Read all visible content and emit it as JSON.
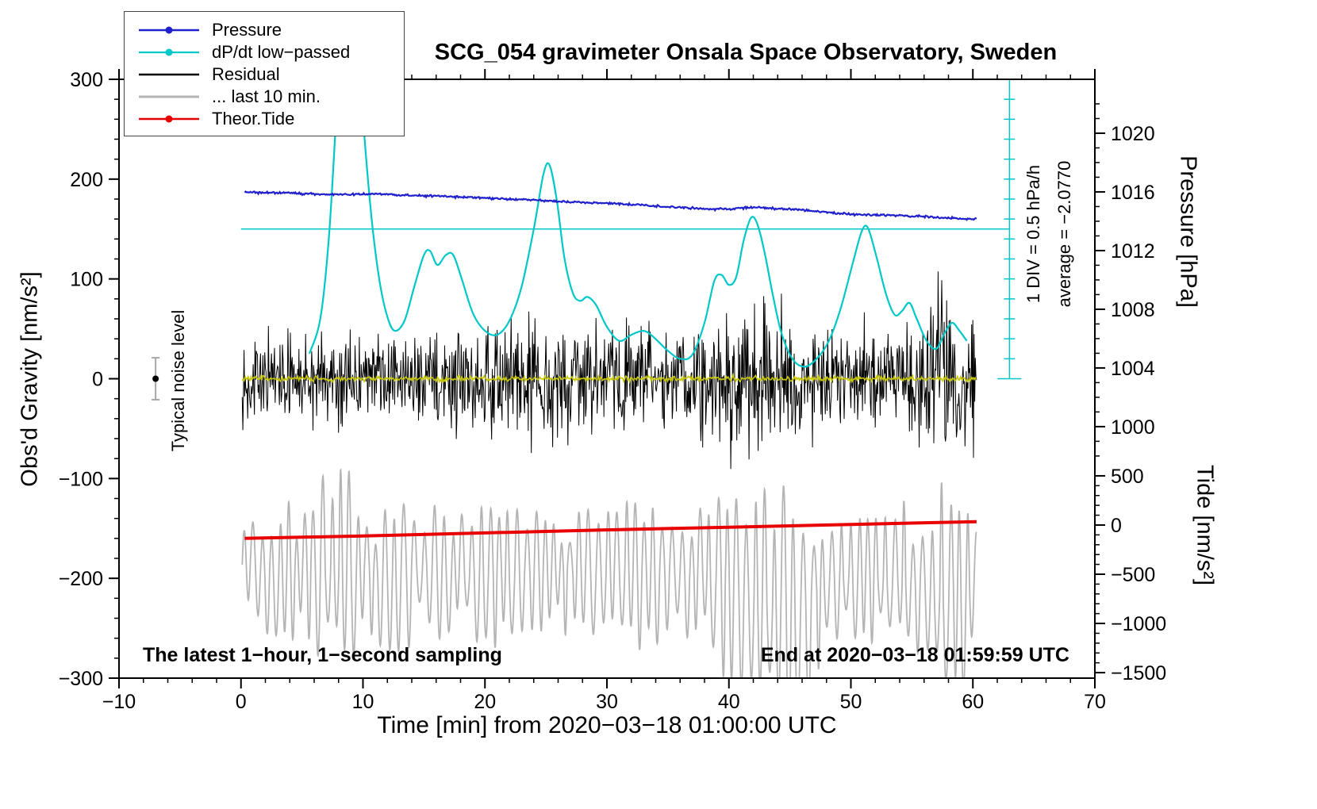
{
  "chart_data": {
    "type": "line",
    "title": "SCG_054 gravimeter Onsala Space Observatory, Sweden",
    "xlabel": "Time [min] from 2020−03−18 01:00:00 UTC",
    "ylabel_left": "Obs'd Gravity [nm/s²]",
    "x_domain": [
      -10,
      70
    ],
    "y_domain": [
      -300,
      300
    ],
    "x_axis": {
      "minor_step": 2,
      "ticks": [
        {
          "v": -10,
          "label": "−10"
        },
        {
          "v": 0,
          "label": "0"
        },
        {
          "v": 10,
          "label": "10"
        },
        {
          "v": 20,
          "label": "20"
        },
        {
          "v": 30,
          "label": "30"
        },
        {
          "v": 40,
          "label": "40"
        },
        {
          "v": 50,
          "label": "50"
        },
        {
          "v": 60,
          "label": "60"
        },
        {
          "v": 70,
          "label": "70"
        }
      ]
    },
    "y_axis": {
      "minor_step": 20,
      "ticks": [
        {
          "v": 300,
          "label": "300"
        },
        {
          "v": 200,
          "label": "200"
        },
        {
          "v": 100,
          "label": "100"
        },
        {
          "v": 0,
          "label": "0"
        },
        {
          "v": -100,
          "label": "−100"
        },
        {
          "v": -200,
          "label": "−200"
        },
        {
          "v": -300,
          "label": "−300"
        }
      ]
    },
    "pressure_axis": {
      "label": "Pressure [hPa]",
      "u0": 187.2,
      "p0": 1016,
      "u_per_hpa": 14.7,
      "minor_step": 1,
      "minor_range": [
        998,
        1022
      ],
      "ticks": [
        {
          "v": 1020,
          "label": "1020"
        },
        {
          "v": 1016,
          "label": "1016"
        },
        {
          "v": 1012,
          "label": "1012"
        },
        {
          "v": 1008,
          "label": "1008"
        },
        {
          "v": 1004,
          "label": "1004"
        },
        {
          "v": 1000,
          "label": "1000"
        }
      ]
    },
    "tide_axis": {
      "label": "Tide [nm/s²]",
      "u0": -146.6,
      "t0": 0,
      "u_per_unit": 0.0986,
      "minor_step": 100,
      "minor_range": [
        -1500,
        500
      ],
      "ticks": [
        {
          "v": 500,
          "label": "500"
        },
        {
          "v": 0,
          "label": "0"
        },
        {
          "v": -500,
          "label": "−500"
        },
        {
          "v": -1000,
          "label": "−1000"
        },
        {
          "v": -1500,
          "label": "−1500"
        }
      ]
    },
    "annotations": {
      "div_label": "1 DIV = 0.5 hPa/h",
      "average_label": "average = −2.0770",
      "noise_label": "Typical noise level",
      "sampling_note": "The latest 1−hour, 1−second sampling",
      "end_note": "End at 2020−03−18 01:59:59 UTC"
    },
    "reference_line": {
      "u": 150,
      "x1": 0,
      "x2": 63,
      "color": "#00c8c8"
    },
    "scale_bar": {
      "x": 63,
      "u1": 0,
      "u2": 300,
      "div_u": 20,
      "color": "#00c8c8"
    },
    "noise_marker": {
      "x": -7,
      "u": 0,
      "error": 21,
      "dot_color": "#000000",
      "bar_color": "#a8a8a8"
    },
    "series": [
      {
        "name": "last-10-min",
        "legend": "... last 10 min.",
        "type": "osc",
        "color": "#b4b4b4",
        "width": 1.8,
        "x_range": [
          0.1,
          60.3
        ],
        "period_min": 0.75,
        "period_var": 0.5,
        "seed": 7,
        "center": [
          [
            0,
            -193
          ],
          [
            3,
            -198
          ],
          [
            6,
            -192
          ],
          [
            9,
            -196
          ],
          [
            12,
            -199
          ],
          [
            15,
            -194
          ],
          [
            18,
            -199
          ],
          [
            21,
            -195
          ],
          [
            24,
            -199
          ],
          [
            27,
            -194
          ],
          [
            30,
            -199
          ],
          [
            33,
            -195
          ],
          [
            36,
            -199
          ],
          [
            38,
            -196
          ],
          [
            40,
            -208
          ],
          [
            42,
            -220
          ],
          [
            44,
            -232
          ],
          [
            45,
            -242
          ],
          [
            46,
            -232
          ],
          [
            47,
            -212
          ],
          [
            48,
            -200
          ],
          [
            50,
            -195
          ],
          [
            52,
            -200
          ],
          [
            54,
            -205
          ],
          [
            56,
            -212
          ],
          [
            57,
            -218
          ],
          [
            58,
            -222
          ],
          [
            59,
            -216
          ],
          [
            60.3,
            -210
          ]
        ],
        "amplitude": [
          [
            0,
            40
          ],
          [
            2,
            48
          ],
          [
            3,
            60
          ],
          [
            4,
            52
          ],
          [
            5,
            46
          ],
          [
            6,
            55
          ],
          [
            7,
            78
          ],
          [
            8,
            88
          ],
          [
            9,
            74
          ],
          [
            10,
            60
          ],
          [
            11,
            50
          ],
          [
            12,
            54
          ],
          [
            13,
            58
          ],
          [
            14,
            52
          ],
          [
            15,
            46
          ],
          [
            16,
            50
          ],
          [
            17,
            54
          ],
          [
            18,
            50
          ],
          [
            19,
            46
          ],
          [
            20,
            50
          ],
          [
            21,
            54
          ],
          [
            22,
            50
          ],
          [
            23,
            46
          ],
          [
            24,
            50
          ],
          [
            25,
            54
          ],
          [
            26,
            50
          ],
          [
            27,
            46
          ],
          [
            28,
            54
          ],
          [
            29,
            58
          ],
          [
            30,
            54
          ],
          [
            31,
            50
          ],
          [
            32,
            58
          ],
          [
            33,
            54
          ],
          [
            34,
            50
          ],
          [
            35,
            46
          ],
          [
            36,
            50
          ],
          [
            37,
            46
          ],
          [
            38,
            50
          ],
          [
            39,
            58
          ],
          [
            40,
            76
          ],
          [
            41,
            88
          ],
          [
            42,
            82
          ],
          [
            43,
            88
          ],
          [
            44,
            98
          ],
          [
            45,
            104
          ],
          [
            46,
            88
          ],
          [
            47,
            74
          ],
          [
            48,
            60
          ],
          [
            49,
            52
          ],
          [
            50,
            54
          ],
          [
            51,
            58
          ],
          [
            52,
            52
          ],
          [
            53,
            54
          ],
          [
            54,
            58
          ],
          [
            55,
            64
          ],
          [
            56,
            74
          ],
          [
            57,
            88
          ],
          [
            58,
            82
          ],
          [
            59,
            78
          ],
          [
            60.3,
            70
          ]
        ]
      },
      {
        "name": "theor-tide",
        "legend": "Theor.Tide",
        "type": "smooth",
        "color": "#e80000",
        "width": 4,
        "points": [
          [
            0.3,
            -160
          ],
          [
            10,
            -157.5
          ],
          [
            20,
            -154.5
          ],
          [
            30,
            -151.5
          ],
          [
            40,
            -148.8
          ],
          [
            50,
            -146
          ],
          [
            60.3,
            -143.2
          ]
        ]
      },
      {
        "name": "residual",
        "legend": "Residual",
        "type": "noise",
        "color": "#000000",
        "width": 1,
        "x_range": [
          0.1,
          60.3
        ],
        "step": 0.05,
        "seed": 13,
        "envelope": [
          [
            0,
            42
          ],
          [
            5,
            46
          ],
          [
            8,
            50
          ],
          [
            12,
            46
          ],
          [
            15,
            50
          ],
          [
            18,
            55
          ],
          [
            20,
            60
          ],
          [
            23,
            66
          ],
          [
            25,
            72
          ],
          [
            27,
            62
          ],
          [
            30,
            56
          ],
          [
            33,
            62
          ],
          [
            35,
            56
          ],
          [
            38,
            66
          ],
          [
            40,
            76
          ],
          [
            42,
            82
          ],
          [
            44,
            76
          ],
          [
            46,
            70
          ],
          [
            48,
            62
          ],
          [
            50,
            56
          ],
          [
            52,
            60
          ],
          [
            54,
            56
          ],
          [
            56,
            72
          ],
          [
            57,
            95
          ],
          [
            58,
            102
          ],
          [
            59,
            92
          ],
          [
            60.3,
            86
          ]
        ]
      },
      {
        "name": "residual-lowpass",
        "type": "fuzzy",
        "color": "#c8c800",
        "width": 1.6,
        "x_range": [
          0.1,
          60.3
        ],
        "step": 0.08,
        "jitter": 2.2,
        "seed": 3,
        "points": [
          [
            0,
            0
          ],
          [
            60.3,
            0
          ]
        ]
      },
      {
        "name": "dpdt-lowpass",
        "legend": "dP/dt low−passed",
        "type": "smooth",
        "color": "#00c8c8",
        "width": 2.2,
        "points": [
          [
            5.6,
            25
          ],
          [
            6.5,
            60
          ],
          [
            7.2,
            140
          ],
          [
            7.8,
            260
          ],
          [
            8.4,
            370
          ],
          [
            9,
            395
          ],
          [
            9.6,
            330
          ],
          [
            10.2,
            230
          ],
          [
            10.8,
            150
          ],
          [
            11.4,
            95
          ],
          [
            12,
            62
          ],
          [
            12.6,
            48
          ],
          [
            13.4,
            58
          ],
          [
            14.2,
            92
          ],
          [
            15,
            124
          ],
          [
            15.5,
            128
          ],
          [
            16.1,
            114
          ],
          [
            16.8,
            124
          ],
          [
            17.4,
            124
          ],
          [
            18.1,
            100
          ],
          [
            19,
            66
          ],
          [
            20,
            48
          ],
          [
            21,
            44
          ],
          [
            22,
            58
          ],
          [
            23,
            92
          ],
          [
            24,
            150
          ],
          [
            24.8,
            205
          ],
          [
            25.3,
            214
          ],
          [
            25.9,
            178
          ],
          [
            26.5,
            122
          ],
          [
            27.2,
            86
          ],
          [
            27.8,
            78
          ],
          [
            28.4,
            82
          ],
          [
            29.1,
            74
          ],
          [
            30,
            52
          ],
          [
            31,
            38
          ],
          [
            32,
            44
          ],
          [
            33,
            48
          ],
          [
            33.8,
            42
          ],
          [
            35,
            28
          ],
          [
            36,
            20
          ],
          [
            37,
            24
          ],
          [
            38,
            56
          ],
          [
            38.8,
            98
          ],
          [
            39.4,
            104
          ],
          [
            40,
            94
          ],
          [
            40.6,
            102
          ],
          [
            41.2,
            138
          ],
          [
            41.8,
            161
          ],
          [
            42.3,
            156
          ],
          [
            42.9,
            128
          ],
          [
            43.6,
            84
          ],
          [
            44.3,
            46
          ],
          [
            45.2,
            20
          ],
          [
            46.2,
            12
          ],
          [
            47.2,
            20
          ],
          [
            48.2,
            38
          ],
          [
            49.2,
            72
          ],
          [
            50.2,
            118
          ],
          [
            50.9,
            148
          ],
          [
            51.4,
            151
          ],
          [
            52.1,
            122
          ],
          [
            52.9,
            84
          ],
          [
            53.6,
            64
          ],
          [
            54.2,
            68
          ],
          [
            54.8,
            76
          ],
          [
            55.4,
            60
          ],
          [
            56.2,
            38
          ],
          [
            57,
            30
          ],
          [
            57.7,
            46
          ],
          [
            58.3,
            56
          ],
          [
            58.9,
            48
          ],
          [
            59.5,
            38
          ]
        ]
      },
      {
        "name": "pressure",
        "legend": "Pressure",
        "type": "fuzzy",
        "color": "#2020cc",
        "width": 2.2,
        "x_range": [
          0.3,
          60.3
        ],
        "step": 0.08,
        "jitter": 0.9,
        "seed": 21,
        "points": [
          [
            0.3,
            187
          ],
          [
            2,
            186.5
          ],
          [
            4,
            186
          ],
          [
            6,
            185.2
          ],
          [
            8,
            184.6
          ],
          [
            9,
            184.6
          ],
          [
            10,
            185
          ],
          [
            11,
            185.4
          ],
          [
            12,
            184.6
          ],
          [
            14,
            183.6
          ],
          [
            16,
            183
          ],
          [
            18,
            182
          ],
          [
            20,
            181
          ],
          [
            22,
            180
          ],
          [
            24,
            179
          ],
          [
            26,
            177.6
          ],
          [
            28,
            176.6
          ],
          [
            30,
            176
          ],
          [
            32,
            174.6
          ],
          [
            34,
            173
          ],
          [
            36,
            171.6
          ],
          [
            38,
            170.2
          ],
          [
            40,
            170
          ],
          [
            41,
            171
          ],
          [
            42,
            171.8
          ],
          [
            43,
            171
          ],
          [
            44,
            170
          ],
          [
            45,
            170
          ],
          [
            46,
            169.4
          ],
          [
            47,
            168
          ],
          [
            48,
            166.6
          ],
          [
            49,
            165.6
          ],
          [
            50,
            165
          ],
          [
            52,
            164
          ],
          [
            54,
            163.4
          ],
          [
            56,
            162.4
          ],
          [
            58,
            161
          ],
          [
            59,
            160.4
          ],
          [
            60.3,
            160
          ]
        ]
      }
    ]
  },
  "legend": {
    "items": [
      {
        "key": "pressure",
        "label": "Pressure",
        "color": "#2020cc",
        "lw": 2.5,
        "dot": true
      },
      {
        "key": "dpdt",
        "label": "dP/dt low−passed",
        "color": "#00c8c8",
        "lw": 2.2,
        "dot": true
      },
      {
        "key": "residual",
        "label": "Residual",
        "color": "#000000",
        "lw": 2.5,
        "dot": false
      },
      {
        "key": "last10",
        "label": "... last 10 min.",
        "color": "#b4b4b4",
        "lw": 3,
        "dot": false
      },
      {
        "key": "tide",
        "label": "Theor.Tide",
        "color": "#e80000",
        "lw": 2.5,
        "dot": true
      }
    ]
  }
}
